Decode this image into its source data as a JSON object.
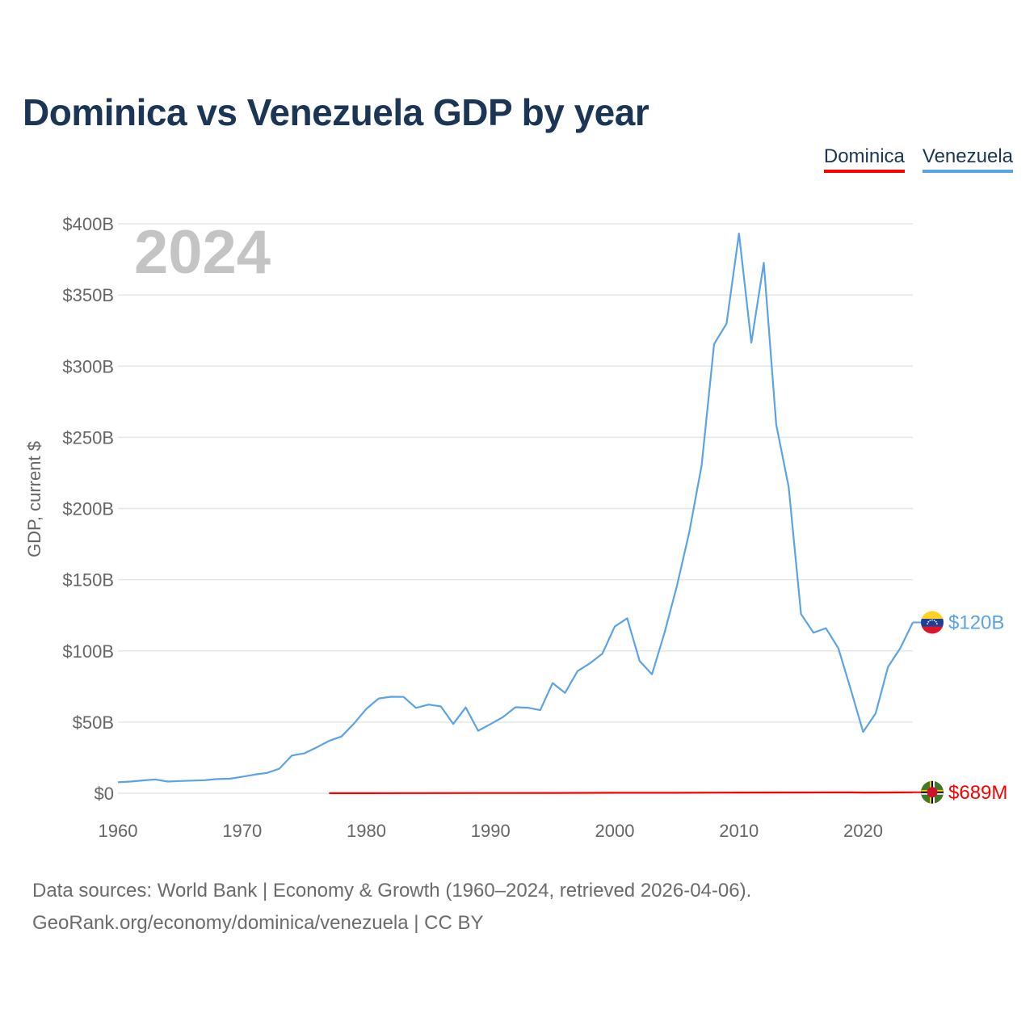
{
  "title": "Dominica vs Venezuela GDP by year",
  "legend": {
    "dominica": "Dominica",
    "venezuela": "Venezuela"
  },
  "footer": {
    "line1": "Data sources: World Bank | Economy & Growth (1960–2024, retrieved 2026-04-06).",
    "line2": "GeoRank.org/economy/dominica/venezuela | CC BY"
  },
  "chart_data": {
    "type": "line",
    "title": "Dominica vs Venezuela GDP by year",
    "ylabel": "GDP, current $",
    "xlabel": "",
    "year_label": "2024",
    "xlim": [
      1960,
      2024
    ],
    "ylim": [
      0,
      400
    ],
    "y_unit": "billions USD",
    "grid": true,
    "legend_position": "top-right",
    "y_ticks": [
      {
        "value": 0,
        "label": "$0"
      },
      {
        "value": 50,
        "label": "$50B"
      },
      {
        "value": 100,
        "label": "$100B"
      },
      {
        "value": 150,
        "label": "$150B"
      },
      {
        "value": 200,
        "label": "$200B"
      },
      {
        "value": 250,
        "label": "$250B"
      },
      {
        "value": 300,
        "label": "$300B"
      },
      {
        "value": 350,
        "label": "$350B"
      },
      {
        "value": 400,
        "label": "$400B"
      }
    ],
    "x_ticks": [
      {
        "value": 1960,
        "label": "1960"
      },
      {
        "value": 1970,
        "label": "1970"
      },
      {
        "value": 1980,
        "label": "1980"
      },
      {
        "value": 1990,
        "label": "1990"
      },
      {
        "value": 2000,
        "label": "2000"
      },
      {
        "value": 2010,
        "label": "2010"
      },
      {
        "value": 2020,
        "label": "2020"
      }
    ],
    "series": [
      {
        "name": "Venezuela",
        "color": "#5ba3e6",
        "end_label": "$120B",
        "flag": "venezuela-flag",
        "x": [
          1960,
          1961,
          1962,
          1963,
          1964,
          1965,
          1966,
          1967,
          1968,
          1969,
          1970,
          1971,
          1972,
          1973,
          1974,
          1975,
          1976,
          1977,
          1978,
          1979,
          1980,
          1981,
          1982,
          1983,
          1984,
          1985,
          1986,
          1987,
          1988,
          1989,
          1990,
          1991,
          1992,
          1993,
          1994,
          1995,
          1996,
          1997,
          1998,
          1999,
          2000,
          2001,
          2002,
          2003,
          2004,
          2005,
          2006,
          2007,
          2008,
          2009,
          2010,
          2011,
          2012,
          2013,
          2014,
          2015,
          2016,
          2017,
          2018,
          2019,
          2020,
          2021,
          2022,
          2023,
          2024
        ],
        "values": [
          7.8,
          8.2,
          9.0,
          9.7,
          8.2,
          8.6,
          8.9,
          9.2,
          10.0,
          10.2,
          11.6,
          13.1,
          14.3,
          17.3,
          26.5,
          28.0,
          32.2,
          36.8,
          39.9,
          48.9,
          59.3,
          66.6,
          67.8,
          67.7,
          60.0,
          62.3,
          61.0,
          48.7,
          60.3,
          43.9,
          48.6,
          53.5,
          60.4,
          60.1,
          58.4,
          77.4,
          70.5,
          85.8,
          91.3,
          98.0,
          117.1,
          122.9,
          92.9,
          83.6,
          112.5,
          145.5,
          183.5,
          230.4,
          315.6,
          329.8,
          393.2,
          316.5,
          372.6,
          258.9,
          215.2,
          125.9,
          112.8,
          115.9,
          101.9,
          73.0,
          43.1,
          56.0,
          88.8,
          102.0,
          120.0
        ]
      },
      {
        "name": "Dominica",
        "color": "#ff0000",
        "end_label": "$689M",
        "flag": "dominica-flag",
        "x": [
          1977,
          1980,
          1985,
          1990,
          1995,
          2000,
          2005,
          2010,
          2015,
          2019,
          2020,
          2022,
          2024
        ],
        "values": [
          0.04,
          0.06,
          0.09,
          0.17,
          0.23,
          0.33,
          0.36,
          0.49,
          0.54,
          0.61,
          0.5,
          0.55,
          0.689
        ]
      }
    ]
  }
}
